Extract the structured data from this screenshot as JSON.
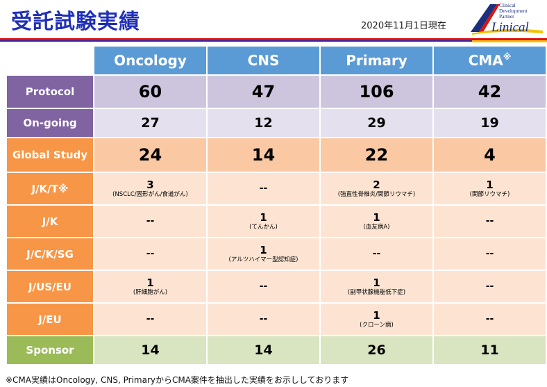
{
  "title": "受託試験実績",
  "date": "2020年11月1日現在",
  "logo": {
    "tagline": [
      "Clinical",
      "Development",
      "Partner"
    ],
    "wordmark": "Linical"
  },
  "columns": [
    "Oncology",
    "CNS",
    "Primary",
    "CMA"
  ],
  "columns_mark": "※",
  "rows": {
    "protocol": {
      "label": "Protocol",
      "values": [
        "60",
        "47",
        "106",
        "42"
      ]
    },
    "ongoing": {
      "label": "On-going",
      "values": [
        "27",
        "12",
        "29",
        "19"
      ]
    },
    "global": {
      "label": "Global Study",
      "values": [
        "24",
        "14",
        "22",
        "4"
      ]
    },
    "jkt": {
      "label": "J/K/T※",
      "cells": [
        {
          "num": "3",
          "note": "(NSCLC/固形がん/食道がん)"
        },
        {
          "num": "--",
          "note": ""
        },
        {
          "num": "2",
          "note": "(強直性脊椎炎/関節リウマチ)"
        },
        {
          "num": "1",
          "note": "(関節リウマチ)"
        }
      ]
    },
    "jk": {
      "label": "J/K",
      "cells": [
        {
          "num": "--",
          "note": ""
        },
        {
          "num": "1",
          "note": "(てんかん)"
        },
        {
          "num": "1",
          "note": "(血友病A)"
        },
        {
          "num": "--",
          "note": ""
        }
      ]
    },
    "jcksg": {
      "label": "J/C/K/SG",
      "cells": [
        {
          "num": "--",
          "note": ""
        },
        {
          "num": "1",
          "note": "(アルツハイマー型認知症)"
        },
        {
          "num": "--",
          "note": ""
        },
        {
          "num": "--",
          "note": ""
        }
      ]
    },
    "juseu": {
      "label": "J/US/EU",
      "cells": [
        {
          "num": "1",
          "note": "(肝細胞がん)"
        },
        {
          "num": "--",
          "note": ""
        },
        {
          "num": "1",
          "note": "(副甲状腺機能低下症)"
        },
        {
          "num": "--",
          "note": ""
        }
      ]
    },
    "jeu": {
      "label": "J/EU",
      "cells": [
        {
          "num": "--",
          "note": ""
        },
        {
          "num": "--",
          "note": ""
        },
        {
          "num": "1",
          "note": "(クローン病)"
        },
        {
          "num": "--",
          "note": ""
        }
      ]
    },
    "sponsor": {
      "label": "Sponsor",
      "values": [
        "14",
        "14",
        "26",
        "11"
      ]
    }
  },
  "footnote": "※CMA実績はOncology, CNS, PrimaryからCMA案件を抽出した実績をお示ししております",
  "colors": {
    "title": "#1f2fb8",
    "header": "#5b9bd5",
    "purple": "#8064a2",
    "orange": "#f79646",
    "green": "#9bbb59",
    "red_rule": "#e01010",
    "logo_yellow": "#f2c200",
    "logo_blue": "#1c2f7c"
  }
}
